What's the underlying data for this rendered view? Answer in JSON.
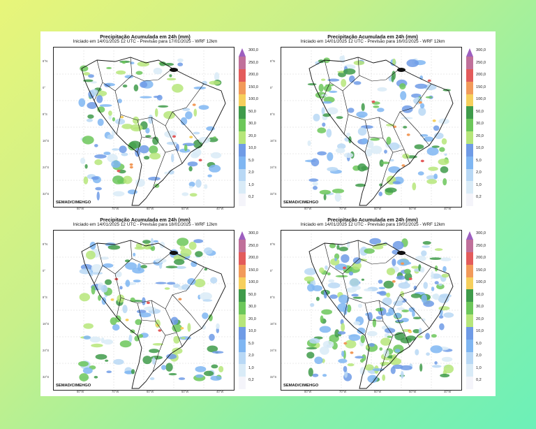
{
  "title": "Precipitação Acumulada em 24h (mm)",
  "credit": "SEMAD/CIMEHGO",
  "panels": [
    {
      "subtitle": "Iniciado em 14/01/2025 12 UTC - Previsão para 17/01/2025 - WRF 12km"
    },
    {
      "subtitle": "Iniciado em 14/01/2025 12 UTC - Previsão para 16/01/2025 - WRF 12km"
    },
    {
      "subtitle": "Iniciado em 14/01/2025 12 UTC - Previsão para 18/01/2025 - WRF 12km"
    },
    {
      "subtitle": "Iniciado em 14/01/2025 12 UTC - Previsão para 19/01/2025 - WRF 12km"
    }
  ],
  "colorbar": {
    "labels": [
      "300,0",
      "250,0",
      "200,0",
      "150,0",
      "100,0",
      "50,0",
      "30,0",
      "20,0",
      "10,0",
      "5,0",
      "2,0",
      "1,0",
      "0,2"
    ],
    "colors": [
      "#9d5fbf",
      "#c0709a",
      "#e35b5b",
      "#f29a5a",
      "#f6cf5c",
      "#3f9b4a",
      "#6cc75a",
      "#b6e67a",
      "#6f9be6",
      "#7fb6f2",
      "#b8d8f5",
      "#d9ebf7",
      "#f4f4fa"
    ]
  },
  "lat_labels": [
    "8°N",
    "0°",
    "8°S",
    "16°S",
    "24°S",
    "32°S"
  ],
  "lon_labels": [
    "80°W",
    "70°W",
    "60°W",
    "50°W",
    "40°W"
  ]
}
